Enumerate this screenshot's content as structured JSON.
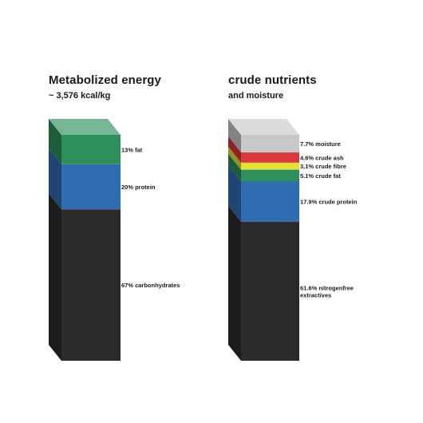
{
  "chart_data": [
    {
      "type": "bar",
      "title": "Metabolized energy",
      "subtitle": "~ 3,576 kcal/kg",
      "segments": [
        {
          "label": "67% carbonhydrates",
          "value": 67,
          "color": "#2b2b2b"
        },
        {
          "label": "20% protein",
          "value": 20,
          "color": "#2f6cb0"
        },
        {
          "label": "13% fat",
          "value": 13,
          "color": "#2e8f5a"
        }
      ]
    },
    {
      "type": "bar",
      "title": "crude nutrients",
      "subtitle": "and moisture",
      "segments": [
        {
          "label": [
            "61.6% nitrogenfree",
            "extractives"
          ],
          "value": 61.6,
          "color": "#2b2b2b"
        },
        {
          "label": "17.9% crude protein",
          "value": 17.9,
          "color": "#2f6cb0"
        },
        {
          "label": "5.1% crude fat",
          "value": 5.1,
          "color": "#2e8f5a"
        },
        {
          "label": "3.1% crude fibre",
          "value": 3.1,
          "color": "#e6df3a"
        },
        {
          "label": "4.6% crude ash",
          "value": 4.6,
          "color": "#d9393b"
        },
        {
          "label": "7.7% moisture",
          "value": 7.7,
          "color": "#c8c8c8"
        }
      ]
    }
  ]
}
